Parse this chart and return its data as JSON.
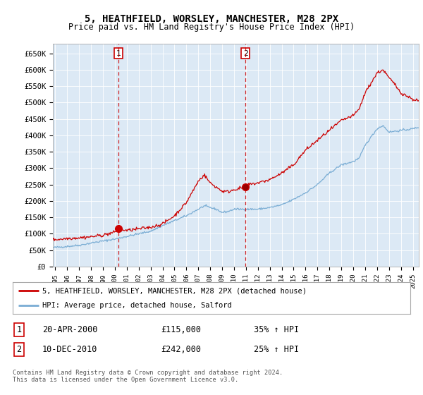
{
  "title": "5, HEATHFIELD, WORSLEY, MANCHESTER, M28 2PX",
  "subtitle": "Price paid vs. HM Land Registry's House Price Index (HPI)",
  "title_fontsize": 10,
  "subtitle_fontsize": 8.5,
  "ylabel_ticks": [
    "£0",
    "£50K",
    "£100K",
    "£150K",
    "£200K",
    "£250K",
    "£300K",
    "£350K",
    "£400K",
    "£450K",
    "£500K",
    "£550K",
    "£600K",
    "£650K"
  ],
  "ytick_values": [
    0,
    50000,
    100000,
    150000,
    200000,
    250000,
    300000,
    350000,
    400000,
    450000,
    500000,
    550000,
    600000,
    650000
  ],
  "ylim": [
    0,
    680000
  ],
  "xlim_start": 1994.8,
  "xlim_end": 2025.5,
  "background_color": "#ffffff",
  "chart_bg_color": "#dce9f5",
  "grid_color": "#ffffff",
  "sale1_x": 2000.3,
  "sale1_y": 115000,
  "sale2_x": 2010.95,
  "sale2_y": 242000,
  "sale_color": "#cc0000",
  "hpi_color": "#7aadd4",
  "legend_line1": "5, HEATHFIELD, WORSLEY, MANCHESTER, M28 2PX (detached house)",
  "legend_line2": "HPI: Average price, detached house, Salford",
  "note1_num": "1",
  "note1_date": "20-APR-2000",
  "note1_price": "£115,000",
  "note1_hpi": "35% ↑ HPI",
  "note2_num": "2",
  "note2_date": "10-DEC-2010",
  "note2_price": "£242,000",
  "note2_hpi": "25% ↑ HPI",
  "footer": "Contains HM Land Registry data © Crown copyright and database right 2024.\nThis data is licensed under the Open Government Licence v3.0."
}
